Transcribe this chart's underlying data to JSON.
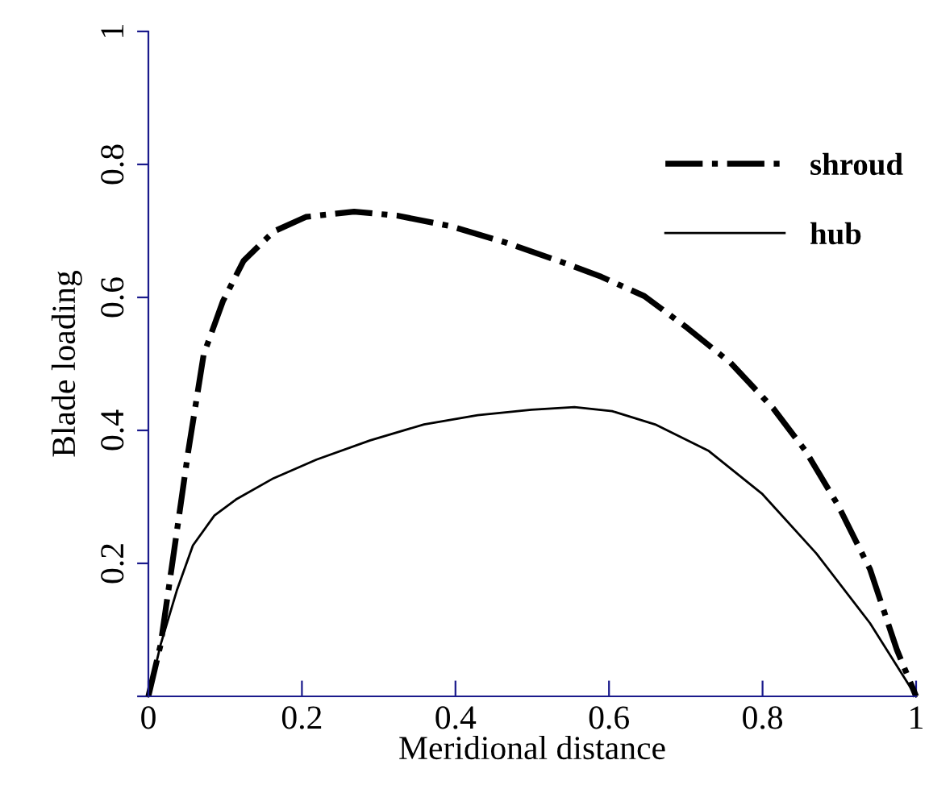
{
  "chart_data": {
    "type": "line",
    "xlabel": "Meridional distance",
    "ylabel": "Blade loading",
    "xlim": [
      0,
      1
    ],
    "ylim": [
      0,
      1
    ],
    "xticks": [
      0,
      0.2,
      0.4,
      0.6,
      0.8,
      1
    ],
    "yticks": [
      {
        "value": 0,
        "label": null
      },
      0.2,
      0.4,
      0.6,
      0.8,
      1
    ],
    "grid": false,
    "legend": "top right",
    "marker": "none",
    "series": [
      {
        "name": "shroud",
        "color": "#000000",
        "line_style": "dashdot",
        "x": [
          0,
          0.016,
          0.034,
          0.052,
          0.072,
          0.097,
          0.124,
          0.163,
          0.205,
          0.268,
          0.324,
          0.394,
          0.464,
          0.534,
          0.59,
          0.646,
          0.702,
          0.758,
          0.814,
          0.856,
          0.898,
          0.94,
          0.975,
          1
        ],
        "values": [
          0,
          0.078,
          0.223,
          0.369,
          0.514,
          0.594,
          0.655,
          0.699,
          0.721,
          0.729,
          0.723,
          0.707,
          0.683,
          0.655,
          0.631,
          0.602,
          0.554,
          0.502,
          0.433,
          0.369,
          0.288,
          0.191,
          0.07,
          0
        ]
      },
      {
        "name": "hub",
        "color": "#000000",
        "line_style": "solid",
        "x": [
          0,
          0.016,
          0.037,
          0.058,
          0.086,
          0.114,
          0.163,
          0.219,
          0.289,
          0.359,
          0.429,
          0.499,
          0.555,
          0.604,
          0.66,
          0.73,
          0.8,
          0.87,
          0.94,
          1
        ],
        "values": [
          0,
          0.078,
          0.159,
          0.227,
          0.272,
          0.296,
          0.328,
          0.356,
          0.385,
          0.409,
          0.423,
          0.431,
          0.435,
          0.429,
          0.409,
          0.369,
          0.304,
          0.215,
          0.11,
          0
        ]
      }
    ]
  }
}
